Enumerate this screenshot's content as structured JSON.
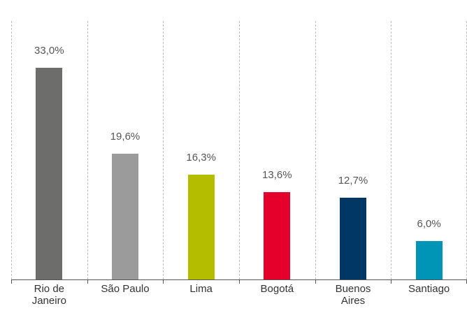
{
  "chart_data": {
    "type": "bar",
    "categories": [
      "Rio de Janeiro",
      "São Paulo",
      "Lima",
      "Bogotá",
      "Buenos Aires",
      "Santiago"
    ],
    "values": [
      33.0,
      19.6,
      16.3,
      13.6,
      12.7,
      6.0
    ],
    "value_labels": [
      "33,0%",
      "19,6%",
      "16,3%",
      "13,6%",
      "12,7%",
      "6,0%"
    ],
    "colors": [
      "#6d6e6c",
      "#9b9b9b",
      "#b5bd00",
      "#e4002b",
      "#003764",
      "#0095b6"
    ]
  }
}
